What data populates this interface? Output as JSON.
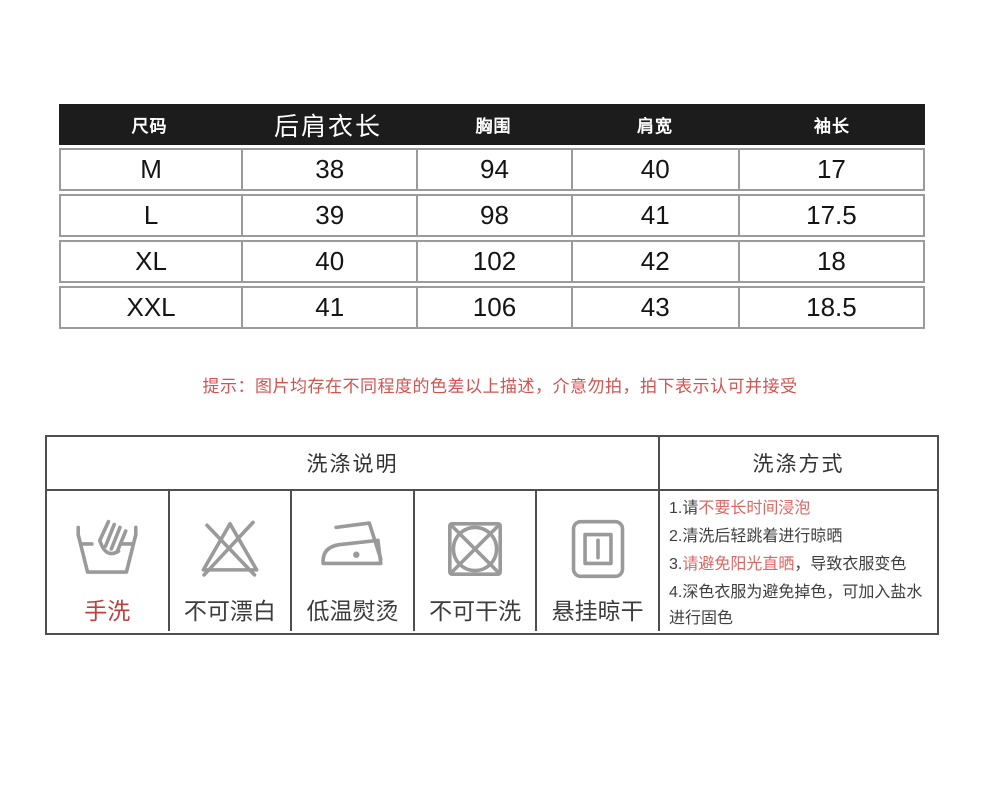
{
  "size_table": {
    "headers": [
      "尺码",
      "后肩衣长",
      "胸围",
      "肩宽",
      "袖长"
    ],
    "rows": [
      [
        "M",
        "38",
        "94",
        "40",
        "17"
      ],
      [
        "L",
        "39",
        "98",
        "41",
        "17.5"
      ],
      [
        "XL",
        "40",
        "102",
        "42",
        "18"
      ],
      [
        "XXL",
        "41",
        "106",
        "43",
        "18.5"
      ]
    ]
  },
  "notice": {
    "text": "提示：图片均存在不同程度的色差以上描述，介意勿拍，拍下表示认可并接受",
    "color": "#d2534f"
  },
  "care_table": {
    "left_header": "洗涤说明",
    "right_header": "洗涤方式",
    "icons": [
      {
        "icon": "hand-wash-icon",
        "label": "手洗",
        "label_color": "#c03e3c"
      },
      {
        "icon": "no-bleach-icon",
        "label": "不可漂白",
        "label_color": "#3c3c3c"
      },
      {
        "icon": "low-temp-iron-icon",
        "label": "低温熨烫",
        "label_color": "#3c3c3c"
      },
      {
        "icon": "no-dry-clean-icon",
        "label": "不可干洗",
        "label_color": "#3c3c3c"
      },
      {
        "icon": "hang-dry-icon",
        "label": "悬挂晾干",
        "label_color": "#3c3c3c"
      }
    ],
    "instructions": [
      [
        {
          "t": "1.请",
          "red": false
        },
        {
          "t": "不要长时间浸泡",
          "red": true
        }
      ],
      [
        {
          "t": "2.清洗后轻跳着进行晾晒",
          "red": false
        }
      ],
      [
        {
          "t": "3.",
          "red": false
        },
        {
          "t": "请避免阳光直晒",
          "red": true
        },
        {
          "t": "，导致衣服变色",
          "red": false
        }
      ],
      [
        {
          "t": "4.深色衣服为避免掉色，可加入盐水进行固色",
          "red": false
        }
      ]
    ]
  },
  "colors": {
    "header_bg": "#1c1c1c",
    "table_border": "#9b9b9b",
    "care_border": "#4f4f4f",
    "icon_gray": "#9a9a9a",
    "red_inline": "#d96862"
  }
}
